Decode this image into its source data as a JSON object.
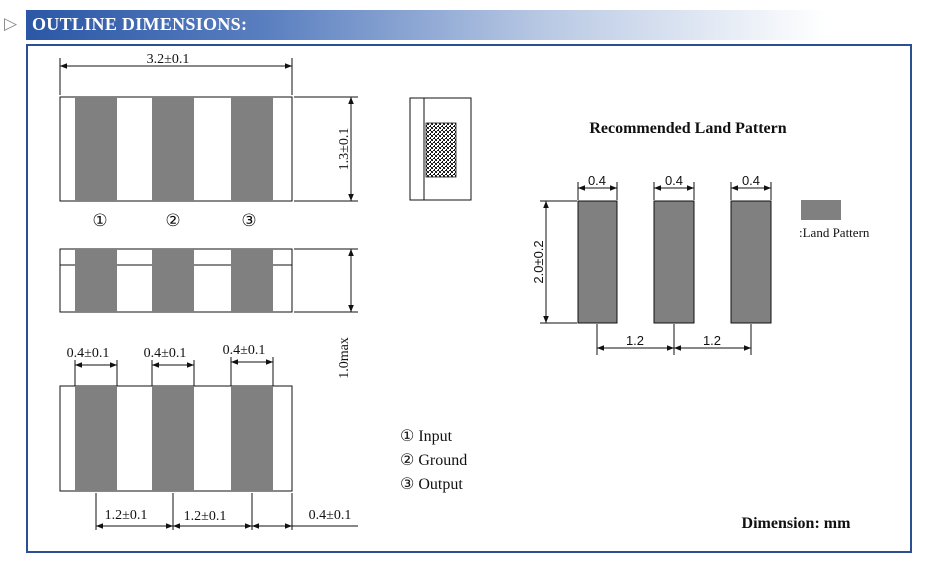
{
  "header": {
    "title": "OUTLINE DIMENSIONS:",
    "arrow_icon": "triangle-right-icon"
  },
  "top_view": {
    "width_dim": "3.2±0.1",
    "height_dim": "1.3±0.1",
    "pin1": "①",
    "pin2": "②",
    "pin3": "③"
  },
  "side_view": {
    "height_dim": "1.0max"
  },
  "bottom_view": {
    "electrode_w1": "0.4±0.1",
    "electrode_w2": "0.4±0.1",
    "electrode_w3": "0.4±0.1",
    "pitch1": "1.2±0.1",
    "pitch2": "1.2±0.1",
    "edge": "0.4±0.1"
  },
  "legend": {
    "pin1": "① Input",
    "pin2": "② Ground",
    "pin3": "③ Output"
  },
  "land_pattern": {
    "title": "Recommended Land Pattern",
    "pad_w1": "0.4",
    "pad_w2": "0.4",
    "pad_w3": "0.4",
    "pad_h": "2.0±0.2",
    "pitch1": "1.2",
    "pitch2": "1.2",
    "legend_label": ":Land Pattern"
  },
  "units": "Dimension: mm",
  "colors": {
    "electrode": "#808080",
    "frame": "#2b4f93",
    "title_bar": "#2b57a6"
  }
}
